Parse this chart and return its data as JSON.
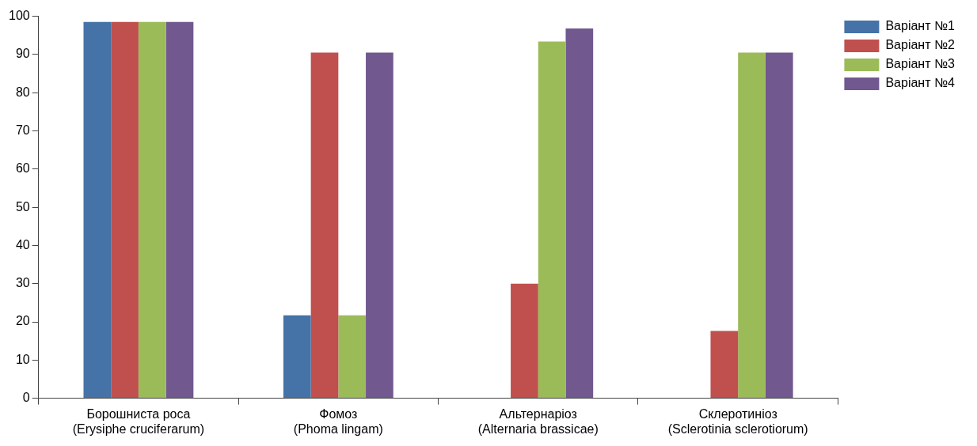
{
  "chart_data": {
    "type": "bar",
    "categories": [
      "Борошниста роса\n(Erysiphe cruciferarum)",
      "Фомоз\n(Phoma lingam)",
      "Альтернаріоз\n(Alternaria brassicae)",
      "Склеротиніоз\n(Sclerotinia sclerotiorum)"
    ],
    "series": [
      {
        "name": "Варіант №1",
        "color": "#4572a7",
        "values": [
          98.5,
          21.7,
          0,
          0
        ]
      },
      {
        "name": "Варіант №2",
        "color": "#c0504d",
        "values": [
          98.5,
          90.5,
          30,
          17.6
        ]
      },
      {
        "name": "Варіант №3",
        "color": "#9bbb59",
        "values": [
          98.5,
          21.7,
          93.4,
          90.5
        ]
      },
      {
        "name": "Варіант №4",
        "color": "#71588f",
        "values": [
          98.5,
          90.5,
          96.8,
          90.5
        ]
      }
    ],
    "ylim": [
      0,
      100
    ],
    "yticks": [
      0,
      10,
      20,
      30,
      40,
      50,
      60,
      70,
      80,
      90,
      100
    ],
    "grid": false,
    "legend": "right"
  }
}
